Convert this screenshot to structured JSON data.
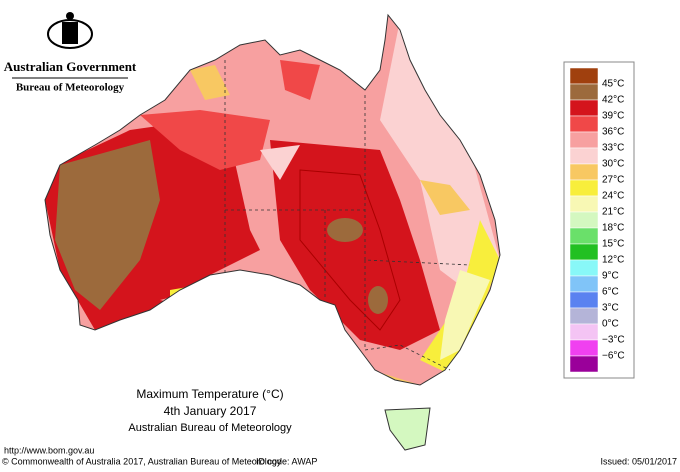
{
  "header": {
    "government": "Australian Government",
    "agency": "Bureau of Meteorology"
  },
  "map": {
    "title": "Maximum Temperature (°C)",
    "date": "4th January 2017",
    "source": "Australian Bureau of Meteorology"
  },
  "legend": {
    "colors": [
      "#a0400e",
      "#9c6a3c",
      "#d4141c",
      "#f04848",
      "#f7a0a0",
      "#fbd2d2",
      "#f8c862",
      "#f8ee3c",
      "#f8f8b4",
      "#d4f8c0",
      "#6ae06a",
      "#22c022",
      "#88f8f8",
      "#80c4f8",
      "#5a82f0",
      "#b4b4d8",
      "#f4c4f4",
      "#f040f0",
      "#9a009a"
    ],
    "labels": [
      "45°C",
      "42°C",
      "39°C",
      "36°C",
      "33°C",
      "30°C",
      "27°C",
      "24°C",
      "21°C",
      "18°C",
      "15°C",
      "12°C",
      "9°C",
      "6°C",
      "3°C",
      "0°C",
      "−3°C",
      "−6°C"
    ]
  },
  "footer": {
    "url": "http://www.bom.gov.au",
    "copyright": "© Commonwealth of Australia 2017, Australian Bureau of Meteorology",
    "id_code": "ID code: AWAP",
    "issued": "Issued: 05/01/2017"
  }
}
